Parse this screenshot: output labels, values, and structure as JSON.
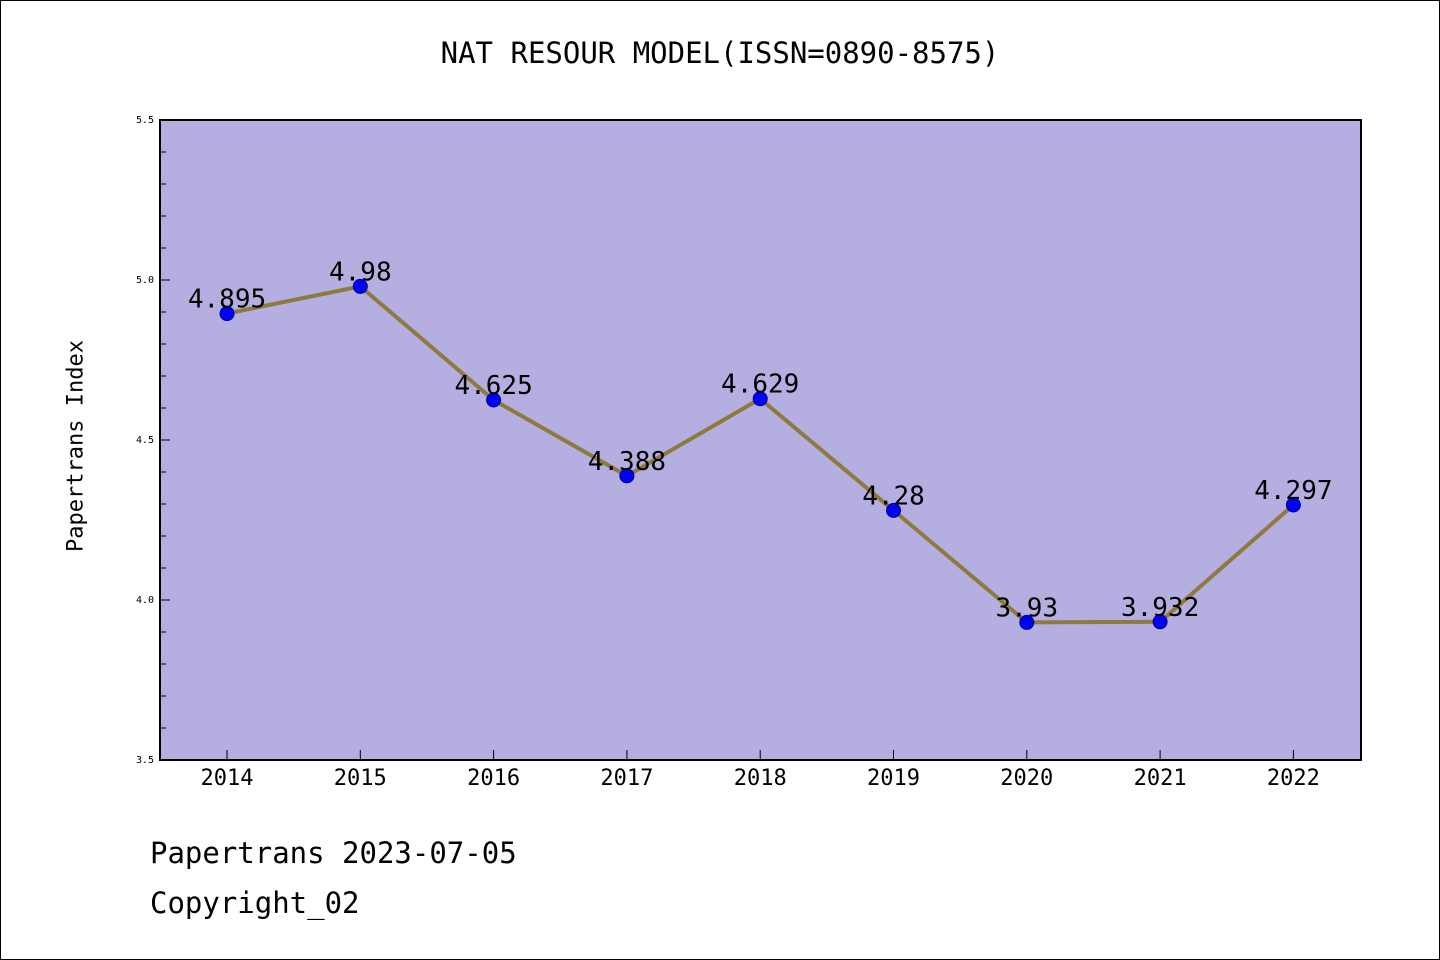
{
  "footer": {
    "line1": "Papertrans 2023-07-05",
    "line2": "Copyright_02"
  },
  "chart_data": {
    "type": "line",
    "title": "NAT RESOUR MODEL(ISSN=0890-8575)",
    "xlabel": "",
    "ylabel": "Papertrans Index",
    "categories": [
      "2014",
      "2015",
      "2016",
      "2017",
      "2018",
      "2019",
      "2020",
      "2021",
      "2022"
    ],
    "values": [
      4.895,
      4.98,
      4.625,
      4.388,
      4.629,
      4.28,
      3.93,
      3.932,
      4.297
    ],
    "data_labels": [
      "4.895",
      "4.98",
      "4.625",
      "4.388",
      "4.629",
      "4.28",
      "3.93",
      "3.932",
      "4.297"
    ],
    "ylim": [
      3.5,
      5.5
    ],
    "yticks": [
      "3.5",
      "4.0",
      "4.5",
      "5.0",
      "5.5"
    ],
    "grid": false,
    "colors": {
      "plot_background": "#b5aee1",
      "line": "#8e7a3c",
      "marker": "#0000ff",
      "marker_edge": "#000080"
    }
  }
}
